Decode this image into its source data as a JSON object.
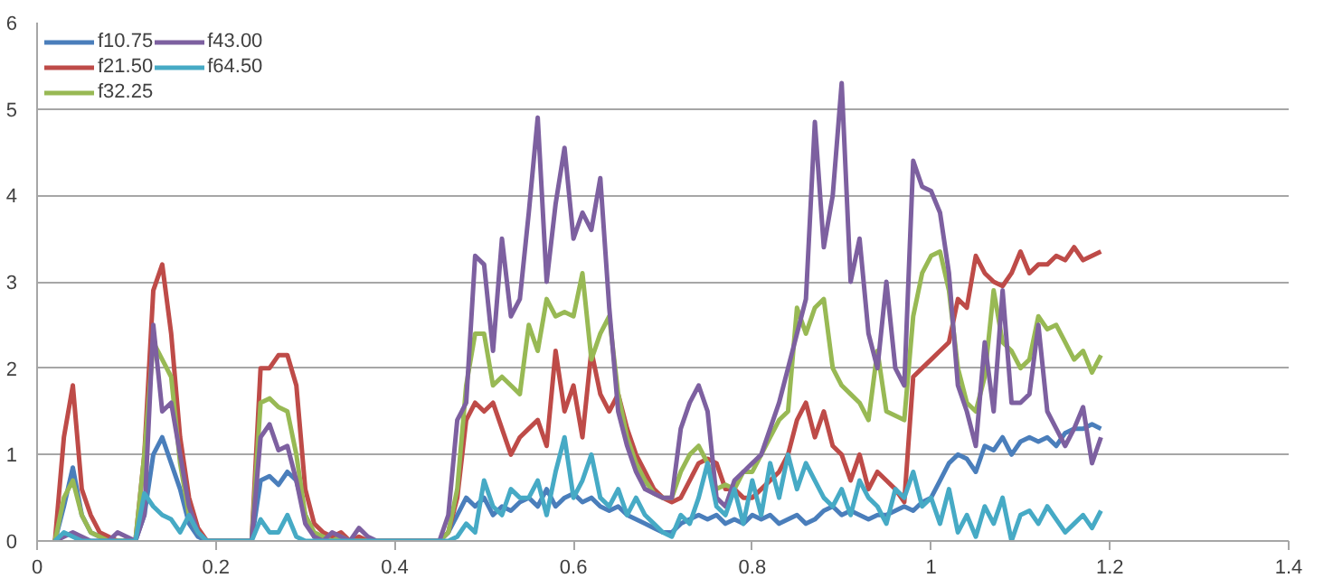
{
  "chart_data": {
    "type": "line",
    "xlim": [
      0,
      1.4
    ],
    "ylim": [
      0,
      6
    ],
    "xticks": [
      0,
      0.2,
      0.4,
      0.6,
      0.8,
      1,
      1.2,
      1.4
    ],
    "yticks": [
      0,
      1,
      2,
      3,
      4,
      5,
      6
    ],
    "grid": "y",
    "legend": "top left",
    "marker": "none",
    "line_style": "solid",
    "x": [
      0.02,
      0.03,
      0.04,
      0.05,
      0.06,
      0.07,
      0.08,
      0.09,
      0.1,
      0.11,
      0.12,
      0.13,
      0.14,
      0.15,
      0.16,
      0.17,
      0.18,
      0.19,
      0.2,
      0.21,
      0.22,
      0.23,
      0.24,
      0.25,
      0.26,
      0.27,
      0.28,
      0.29,
      0.3,
      0.31,
      0.32,
      0.33,
      0.34,
      0.35,
      0.36,
      0.37,
      0.38,
      0.39,
      0.4,
      0.41,
      0.42,
      0.43,
      0.44,
      0.45,
      0.46,
      0.47,
      0.48,
      0.49,
      0.5,
      0.51,
      0.52,
      0.53,
      0.54,
      0.55,
      0.56,
      0.57,
      0.58,
      0.59,
      0.6,
      0.61,
      0.62,
      0.63,
      0.64,
      0.65,
      0.66,
      0.67,
      0.68,
      0.69,
      0.7,
      0.71,
      0.72,
      0.73,
      0.74,
      0.75,
      0.76,
      0.77,
      0.78,
      0.79,
      0.8,
      0.81,
      0.82,
      0.83,
      0.84,
      0.85,
      0.86,
      0.87,
      0.88,
      0.89,
      0.9,
      0.91,
      0.92,
      0.93,
      0.94,
      0.95,
      0.96,
      0.97,
      0.98,
      0.99,
      1.0,
      1.01,
      1.02,
      1.03,
      1.04,
      1.05,
      1.06,
      1.07,
      1.08,
      1.09,
      1.1,
      1.11,
      1.12,
      1.13,
      1.14,
      1.15,
      1.16,
      1.17,
      1.18,
      1.19
    ],
    "series": [
      {
        "name": "f10.75",
        "color": "#4a7ebb",
        "values": [
          0,
          0.4,
          0.85,
          0.3,
          0.1,
          0.05,
          0,
          0,
          0,
          0,
          0.3,
          1.0,
          1.2,
          0.9,
          0.6,
          0.2,
          0.05,
          0,
          0,
          0,
          0,
          0,
          0,
          0.7,
          0.75,
          0.65,
          0.8,
          0.7,
          0.3,
          0.05,
          0,
          0,
          0,
          0,
          0,
          0,
          0,
          0,
          0,
          0,
          0,
          0,
          0,
          0,
          0.1,
          0.3,
          0.5,
          0.4,
          0.5,
          0.3,
          0.4,
          0.35,
          0.45,
          0.5,
          0.4,
          0.6,
          0.4,
          0.5,
          0.55,
          0.45,
          0.5,
          0.4,
          0.35,
          0.4,
          0.3,
          0.25,
          0.2,
          0.15,
          0.1,
          0.1,
          0.2,
          0.25,
          0.3,
          0.25,
          0.3,
          0.2,
          0.25,
          0.2,
          0.3,
          0.25,
          0.3,
          0.2,
          0.25,
          0.3,
          0.2,
          0.25,
          0.35,
          0.4,
          0.3,
          0.35,
          0.3,
          0.25,
          0.3,
          0.3,
          0.35,
          0.4,
          0.35,
          0.45,
          0.5,
          0.7,
          0.9,
          1.0,
          0.95,
          0.8,
          1.1,
          1.05,
          1.2,
          1.0,
          1.15,
          1.2,
          1.15,
          1.2,
          1.1,
          1.25,
          1.3,
          1.3,
          1.35,
          1.3
        ]
      },
      {
        "name": "f21.50",
        "color": "#be4b48",
        "values": [
          0,
          1.2,
          1.8,
          0.6,
          0.3,
          0.1,
          0.05,
          0,
          0,
          0,
          1.0,
          2.9,
          3.2,
          2.4,
          1.2,
          0.5,
          0.15,
          0,
          0,
          0,
          0,
          0,
          0,
          2.0,
          2.0,
          2.15,
          2.15,
          1.8,
          0.6,
          0.2,
          0.1,
          0.05,
          0.1,
          0,
          0.05,
          0,
          0,
          0,
          0,
          0,
          0,
          0,
          0,
          0,
          0.1,
          0.5,
          1.4,
          1.6,
          1.5,
          1.6,
          1.3,
          1.0,
          1.2,
          1.3,
          1.4,
          1.1,
          2.2,
          1.5,
          1.8,
          1.2,
          2.2,
          1.7,
          1.5,
          1.7,
          1.3,
          1.0,
          0.8,
          0.6,
          0.5,
          0.45,
          0.5,
          0.7,
          0.9,
          0.95,
          0.9,
          0.6,
          0.6,
          0.5,
          0.5,
          0.6,
          0.7,
          0.8,
          1.0,
          1.4,
          1.6,
          1.2,
          1.5,
          1.1,
          1.0,
          0.7,
          1.0,
          0.6,
          0.8,
          0.7,
          0.6,
          0.45,
          1.9,
          2.0,
          2.1,
          2.2,
          2.3,
          2.8,
          2.7,
          3.3,
          3.1,
          3.0,
          2.95,
          3.1,
          3.35,
          3.1,
          3.2,
          3.2,
          3.3,
          3.25,
          3.4,
          3.25,
          3.3,
          3.35
        ]
      },
      {
        "name": "f32.25",
        "color": "#98b954",
        "values": [
          0,
          0.5,
          0.7,
          0.3,
          0.1,
          0.05,
          0,
          0,
          0,
          0,
          1.0,
          2.3,
          2.1,
          1.9,
          0.9,
          0.3,
          0.1,
          0,
          0,
          0,
          0,
          0,
          0,
          1.6,
          1.65,
          1.55,
          1.5,
          1.0,
          0.3,
          0.1,
          0.05,
          0,
          0.05,
          0,
          0,
          0,
          0,
          0,
          0,
          0,
          0,
          0,
          0,
          0,
          0.1,
          0.6,
          1.8,
          2.4,
          2.4,
          1.8,
          1.9,
          1.8,
          1.7,
          2.5,
          2.2,
          2.8,
          2.6,
          2.65,
          2.6,
          3.1,
          2.1,
          2.4,
          2.6,
          1.7,
          1.2,
          0.9,
          0.7,
          0.55,
          0.5,
          0.5,
          0.8,
          1.0,
          1.1,
          0.9,
          0.6,
          0.65,
          0.6,
          0.8,
          0.8,
          1.0,
          1.2,
          1.4,
          1.5,
          2.7,
          2.4,
          2.7,
          2.8,
          2.0,
          1.8,
          1.7,
          1.6,
          1.4,
          2.2,
          1.5,
          1.45,
          1.4,
          2.6,
          3.1,
          3.3,
          3.35,
          2.9,
          2.0,
          1.6,
          1.5,
          1.9,
          2.9,
          2.3,
          2.2,
          2.0,
          2.1,
          2.6,
          2.45,
          2.5,
          2.3,
          2.1,
          2.2,
          1.95,
          2.15
        ]
      },
      {
        "name": "f43.00",
        "color": "#7d60a0",
        "values": [
          0,
          0.05,
          0.1,
          0.05,
          0,
          0,
          0,
          0.1,
          0.05,
          0,
          0.3,
          2.5,
          1.5,
          1.6,
          1.0,
          0.4,
          0.1,
          0,
          0,
          0,
          0,
          0,
          0,
          1.2,
          1.35,
          1.05,
          1.1,
          0.7,
          0.2,
          0.05,
          0,
          0.1,
          0.05,
          0,
          0.15,
          0.05,
          0,
          0,
          0,
          0,
          0,
          0,
          0,
          0,
          0.3,
          1.4,
          1.6,
          3.3,
          3.2,
          2.2,
          3.5,
          2.6,
          2.8,
          3.8,
          4.9,
          3.0,
          3.9,
          4.55,
          3.5,
          3.8,
          3.6,
          4.2,
          2.7,
          1.5,
          1.1,
          0.8,
          0.6,
          0.55,
          0.5,
          0.5,
          1.3,
          1.6,
          1.8,
          1.5,
          0.5,
          0.4,
          0.7,
          0.8,
          0.9,
          1.0,
          1.3,
          1.6,
          2.0,
          2.4,
          2.8,
          4.85,
          3.4,
          4.0,
          5.3,
          3.0,
          3.5,
          2.4,
          2.0,
          3.0,
          2.0,
          1.8,
          4.4,
          4.1,
          4.05,
          3.8,
          3.1,
          1.8,
          1.5,
          1.1,
          2.3,
          1.5,
          2.9,
          1.6,
          1.6,
          1.7,
          2.5,
          1.5,
          1.3,
          1.1,
          1.3,
          1.55,
          0.9,
          1.2
        ]
      },
      {
        "name": "f64.50",
        "color": "#46aac5",
        "values": [
          0,
          0.1,
          0.05,
          0,
          0,
          0,
          0,
          0,
          0,
          0,
          0.55,
          0.4,
          0.3,
          0.25,
          0.1,
          0.3,
          0.1,
          0,
          0,
          0,
          0,
          0,
          0,
          0.25,
          0.1,
          0.1,
          0.3,
          0.05,
          0,
          0,
          0,
          0,
          0,
          0,
          0,
          0,
          0,
          0,
          0,
          0,
          0,
          0,
          0,
          0,
          0,
          0.05,
          0.2,
          0.1,
          0.7,
          0.4,
          0.3,
          0.6,
          0.5,
          0.5,
          0.7,
          0.3,
          0.8,
          1.2,
          0.5,
          0.7,
          1.0,
          0.5,
          0.4,
          0.6,
          0.3,
          0.5,
          0.3,
          0.2,
          0.1,
          0.05,
          0.3,
          0.2,
          0.5,
          0.9,
          0.4,
          0.3,
          0.6,
          0.2,
          0.7,
          0.3,
          0.9,
          0.5,
          1.0,
          0.6,
          0.9,
          0.7,
          0.5,
          0.4,
          0.6,
          0.3,
          0.7,
          0.5,
          0.4,
          0.2,
          0.6,
          0.5,
          0.8,
          0.4,
          0.5,
          0.2,
          0.6,
          0.1,
          0.3,
          0.05,
          0.4,
          0.2,
          0.5,
          0.0,
          0.3,
          0.35,
          0.2,
          0.4,
          0.25,
          0.1,
          0.2,
          0.3,
          0.15,
          0.35
        ]
      }
    ]
  }
}
